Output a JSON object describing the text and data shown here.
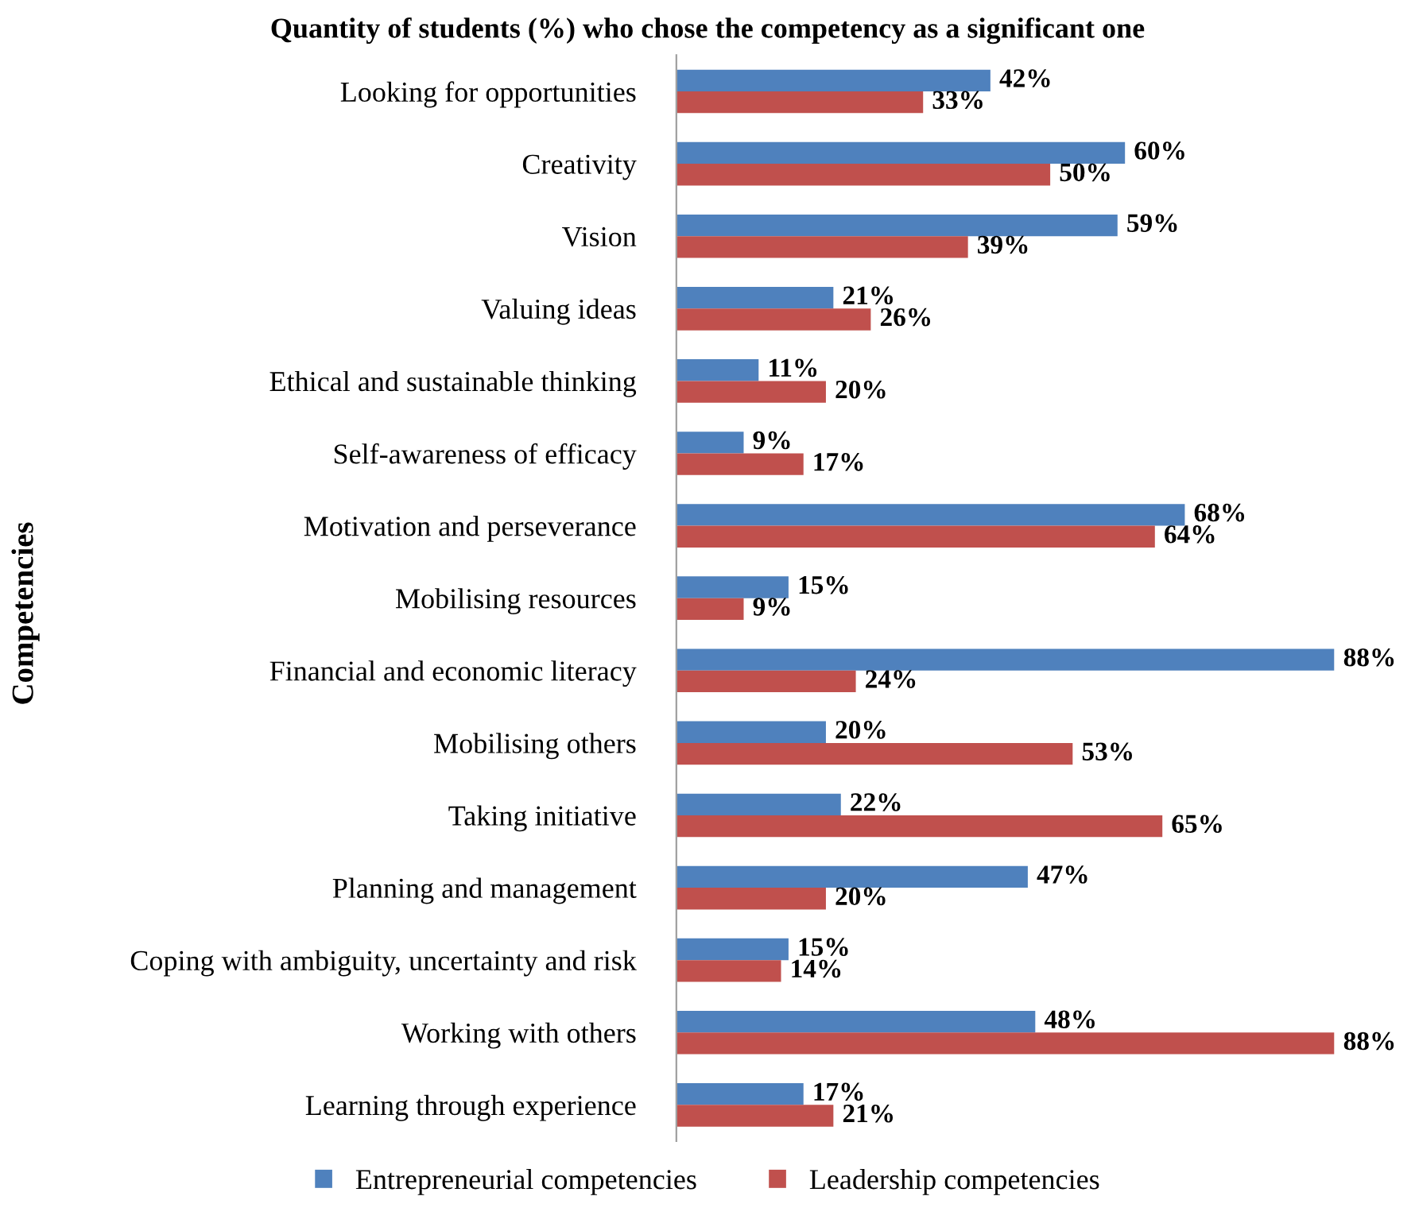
{
  "chart_data": {
    "type": "bar",
    "orientation": "horizontal",
    "title": "Quantity of students (%) who chose the competency as a significant one",
    "ylabel": "Competencies",
    "categories": [
      "Looking for opportunities",
      "Creativity",
      "Vision",
      "Valuing ideas",
      "Ethical and sustainable thinking",
      "Self-awareness of efficacy",
      "Motivation and perseverance",
      "Mobilising resources",
      "Financial and economic literacy",
      "Mobilising others",
      "Taking initiative",
      "Planning and management",
      "Coping with ambiguity, uncertainty and risk",
      "Working with others",
      "Learning through experience"
    ],
    "xlim": [
      0,
      88
    ],
    "series": [
      {
        "name": "Entrepreneurial competencies",
        "color": "#4f81bd",
        "values": [
          42,
          60,
          59,
          21,
          11,
          9,
          68,
          15,
          88,
          20,
          22,
          47,
          15,
          48,
          17
        ],
        "value_labels": [
          "42%",
          "60%",
          "59%",
          "21%",
          "11%",
          "9%",
          "68%",
          "15%",
          "88%",
          "20%",
          "22%",
          "47%",
          "15%",
          "48%",
          "17%"
        ]
      },
      {
        "name": "Leadership competencies",
        "color": "#c0504d",
        "values": [
          33,
          50,
          39,
          26,
          20,
          17,
          64,
          9,
          24,
          53,
          65,
          20,
          14,
          88,
          21
        ],
        "value_labels": [
          "33%",
          "50%",
          "39%",
          "26%",
          "20%",
          "17%",
          "64%",
          "9%",
          "24%",
          "53%",
          "65%",
          "20%",
          "14%",
          "88%",
          "21%"
        ]
      }
    ],
    "legend": "bottom",
    "grid": false
  }
}
